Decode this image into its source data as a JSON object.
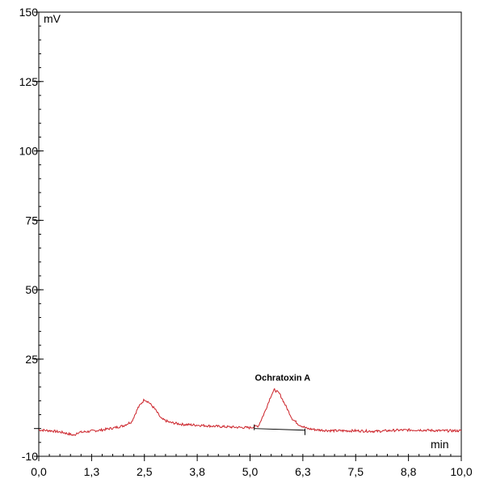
{
  "chart_data": {
    "type": "line",
    "title": "",
    "xlabel": "min",
    "ylabel": "mV",
    "xlim": [
      0,
      10
    ],
    "ylim": [
      -10,
      150
    ],
    "x_ticks": [
      0.0,
      1.25,
      2.5,
      3.75,
      5.0,
      6.25,
      7.5,
      8.75,
      10.0
    ],
    "x_tick_labels": [
      "0,0",
      "1,3",
      "2,5",
      "3,8",
      "5,0",
      "6,3",
      "7,5",
      "8,8",
      "10,0"
    ],
    "y_ticks": [
      -10,
      25,
      50,
      75,
      100,
      125,
      150
    ],
    "y_tick_labels": [
      "-10",
      "25",
      "50",
      "75",
      "100",
      "125",
      "150"
    ],
    "grid": false,
    "line_color": "#cc2229",
    "series": [
      {
        "x": [
          0.0,
          0.3,
          0.6,
          0.85,
          0.9,
          1.2,
          1.5,
          1.8,
          2.0,
          2.2,
          2.35,
          2.5,
          2.6,
          2.75,
          2.9,
          3.1,
          3.4,
          3.8,
          4.2,
          4.6,
          5.0,
          5.2,
          5.35,
          5.5,
          5.58,
          5.7,
          5.85,
          6.0,
          6.15,
          6.35,
          6.6,
          7.0,
          7.5,
          8.0,
          8.5,
          9.0,
          9.5,
          10.0
        ],
        "values": [
          -0.5,
          -0.8,
          -1.5,
          -2.5,
          -1.5,
          -1.0,
          -0.5,
          0.3,
          1.0,
          2.5,
          7.5,
          10.5,
          9.5,
          7.0,
          3.5,
          2.2,
          1.5,
          1.2,
          0.8,
          0.5,
          0.3,
          1.0,
          6.0,
          12.0,
          14.0,
          12.5,
          8.0,
          3.5,
          1.5,
          0.0,
          -0.5,
          -0.8,
          -0.8,
          -1.0,
          -0.6,
          -0.5,
          -0.8,
          -0.8
        ]
      }
    ],
    "baseline": {
      "x": [
        5.1,
        6.3
      ],
      "values": [
        0.0,
        -0.6
      ]
    },
    "annotations": [
      {
        "text": "Ochratoxin A",
        "x": 5.6,
        "y": 14
      }
    ]
  }
}
